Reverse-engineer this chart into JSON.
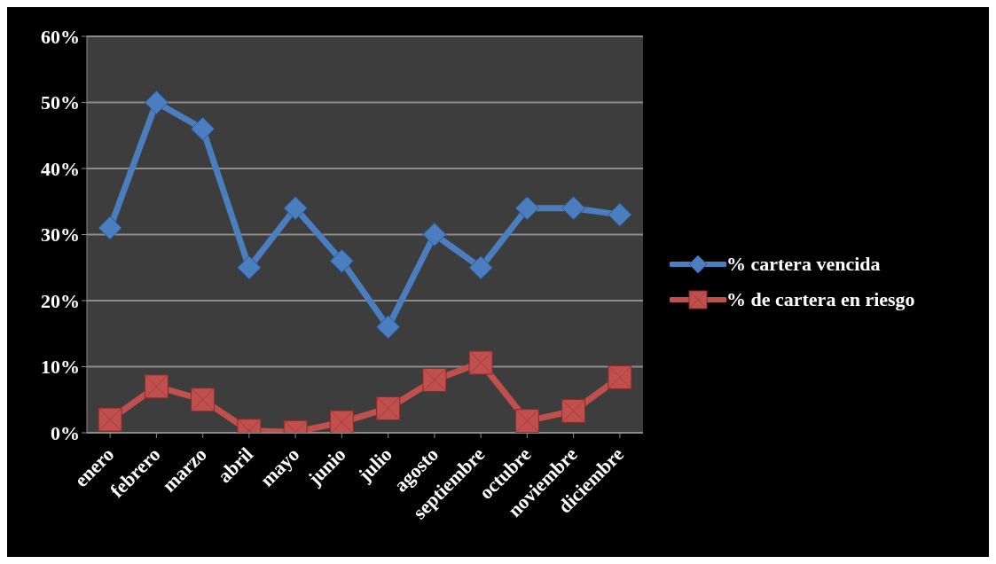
{
  "chart_data": {
    "type": "line",
    "categories": [
      "enero",
      "febrero",
      "marzo",
      "abril",
      "mayo",
      "junio",
      "julio",
      "agosto",
      "septiembre",
      "octubre",
      "noviembre",
      "diciembre"
    ],
    "series": [
      {
        "name": "% cartera vencida",
        "color": "#4a7ebf",
        "marker": "diamond",
        "values": [
          31,
          50,
          46,
          25,
          34,
          26,
          16,
          30,
          25,
          34,
          34,
          33
        ]
      },
      {
        "name": "% de cartera en riesgo",
        "color": "#c0504d",
        "marker": "square",
        "values": [
          2,
          7,
          5,
          0.3,
          0.1,
          1.6,
          3.7,
          8,
          10.6,
          1.8,
          3.3,
          8.4
        ]
      }
    ],
    "ylim": [
      0,
      60
    ],
    "yticks": [
      {
        "value": 0,
        "label": "0%"
      },
      {
        "value": 10,
        "label": "10%"
      },
      {
        "value": 20,
        "label": "20%"
      },
      {
        "value": 30,
        "label": "30%"
      },
      {
        "value": 40,
        "label": "40%"
      },
      {
        "value": 50,
        "label": "50%"
      },
      {
        "value": 60,
        "label": "60%"
      }
    ],
    "grid": "y",
    "legend": "right",
    "line_style": "solid"
  }
}
